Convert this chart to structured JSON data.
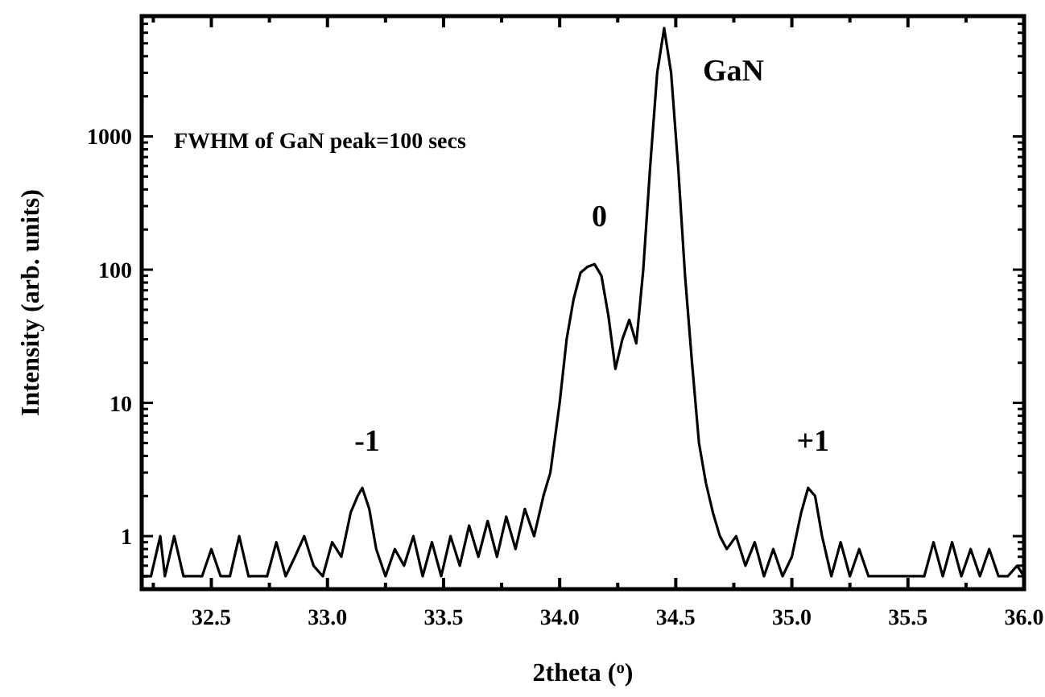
{
  "chart_data": {
    "type": "line",
    "xlabel": "2theta ($^{o}$)",
    "ylabel": "Intensity (arb. units)",
    "log": "y",
    "grid": false,
    "marker": "none",
    "line_style": "solid",
    "xlim": [
      32.2,
      36.0
    ],
    "xticks": [
      {
        "value": 32.25,
        "label": null
      },
      32.5,
      {
        "value": 32.75,
        "label": null
      },
      "33.0",
      {
        "value": 33.25,
        "label": null
      },
      33.5,
      {
        "value": 33.75,
        "label": null
      },
      {
        "value": 34,
        "label": "34.0"
      },
      {
        "value": 34.25,
        "label": null
      },
      34.5,
      {
        "value": 34.75,
        "label": null
      },
      {
        "value": 35,
        "label": "35.0"
      },
      {
        "value": 35.25,
        "label": null
      },
      35.5,
      {
        "value": 35.75,
        "label": null
      },
      {
        "value": 36,
        "label": "36.0"
      }
    ],
    "ylim": [
      0.4,
      8000
    ],
    "yticks": [
      {
        "value": 0.4,
        "label": null
      },
      {
        "value": 0.5,
        "label": null
      },
      {
        "value": 0.6,
        "label": null
      },
      {
        "value": 0.7,
        "label": null
      },
      {
        "value": 0.8,
        "label": null
      },
      {
        "value": 0.9,
        "label": null
      },
      1,
      {
        "value": 2,
        "label": null
      },
      {
        "value": 3,
        "label": null
      },
      {
        "value": 4,
        "label": null
      },
      {
        "value": 5,
        "label": null
      },
      {
        "value": 6,
        "label": null
      },
      {
        "value": 7,
        "label": null
      },
      {
        "value": 8,
        "label": null
      },
      {
        "value": 9,
        "label": null
      },
      10,
      {
        "value": 20,
        "label": null
      },
      {
        "value": 30,
        "label": null
      },
      {
        "value": 40,
        "label": null
      },
      {
        "value": 50,
        "label": null
      },
      {
        "value": 60,
        "label": null
      },
      {
        "value": 70,
        "label": null
      },
      {
        "value": 80,
        "label": null
      },
      {
        "value": 90,
        "label": null
      },
      100,
      {
        "value": 200,
        "label": null
      },
      {
        "value": 300,
        "label": null
      },
      {
        "value": 400,
        "label": null
      },
      {
        "value": 500,
        "label": null
      },
      {
        "value": 600,
        "label": null
      },
      {
        "value": 700,
        "label": null
      },
      {
        "value": 800,
        "label": null
      },
      {
        "value": 900,
        "label": null
      },
      1000,
      {
        "value": 2000,
        "label": null
      },
      {
        "value": 3000,
        "label": null
      },
      {
        "value": 4000,
        "label": null
      },
      {
        "value": 5000,
        "label": null
      },
      {
        "value": 6000,
        "label": null
      },
      {
        "value": 7000,
        "label": null
      },
      {
        "value": 8000,
        "label": null
      }
    ],
    "x": [
      32.2,
      32.24,
      32.28,
      32.3,
      32.34,
      32.38,
      32.42,
      32.46,
      32.5,
      32.54,
      32.58,
      32.62,
      32.66,
      32.7,
      32.74,
      32.78,
      32.82,
      32.86,
      32.9,
      32.94,
      32.98,
      33.02,
      33.06,
      33.1,
      33.13,
      33.15,
      33.18,
      33.21,
      33.25,
      33.29,
      33.33,
      33.37,
      33.41,
      33.45,
      33.49,
      33.53,
      33.57,
      33.61,
      33.65,
      33.69,
      33.73,
      33.77,
      33.81,
      33.85,
      33.89,
      33.93,
      33.96,
      34.0,
      34.03,
      34.06,
      34.09,
      34.12,
      34.15,
      34.18,
      34.21,
      34.24,
      34.27,
      34.3,
      34.33,
      34.36,
      34.39,
      34.42,
      34.45,
      34.48,
      34.51,
      34.54,
      34.57,
      34.6,
      34.63,
      34.66,
      34.69,
      34.72,
      34.76,
      34.8,
      34.84,
      34.88,
      34.92,
      34.96,
      35.0,
      35.04,
      35.07,
      35.1,
      35.13,
      35.17,
      35.21,
      35.25,
      35.29,
      35.33,
      35.37,
      35.41,
      35.45,
      35.49,
      35.53,
      35.57,
      35.61,
      35.65,
      35.69,
      35.73,
      35.77,
      35.81,
      35.85,
      35.89,
      35.93,
      35.97,
      36.0
    ],
    "series": [
      {
        "color": "#000000",
        "values": [
          0.5,
          0.5,
          1,
          0.5,
          1,
          0.5,
          0.5,
          0.5,
          0.8,
          0.5,
          0.5,
          1,
          0.5,
          0.5,
          0.5,
          0.9,
          0.5,
          0.7,
          1,
          0.6,
          0.5,
          0.9,
          0.7,
          1.5,
          2,
          2.3,
          1.6,
          0.8,
          0.5,
          0.8,
          0.6,
          1,
          0.5,
          0.9,
          0.5,
          1,
          0.6,
          1.2,
          0.7,
          1.3,
          0.7,
          1.4,
          0.8,
          1.6,
          1,
          2,
          3,
          10,
          30,
          60,
          95,
          105,
          110,
          90,
          45,
          18,
          30,
          42,
          28,
          100,
          600,
          3000,
          6500,
          3000,
          600,
          90,
          20,
          5,
          2.5,
          1.5,
          1,
          0.8,
          1,
          0.6,
          0.9,
          0.5,
          0.8,
          0.5,
          0.7,
          1.5,
          2.3,
          2,
          1,
          0.5,
          0.9,
          0.5,
          0.8,
          0.5,
          0.5,
          0.5,
          0.5,
          0.5,
          0.5,
          0.5,
          0.9,
          0.5,
          0.9,
          0.5,
          0.8,
          0.5,
          0.8,
          0.5,
          0.5,
          0.6,
          0.5
        ]
      }
    ],
    "annotations": [
      "FWHM of GaN peak=100 secs",
      {
        "text": "GaN",
        "x": 34.45,
        "y": 6500
      },
      {
        "text": "0",
        "x": 34.15,
        "y": 110
      },
      {
        "text": "-1",
        "x": 33.15,
        "y": 2.3
      },
      {
        "text": "+1",
        "x": 35.07,
        "y": 2.3
      }
    ]
  }
}
